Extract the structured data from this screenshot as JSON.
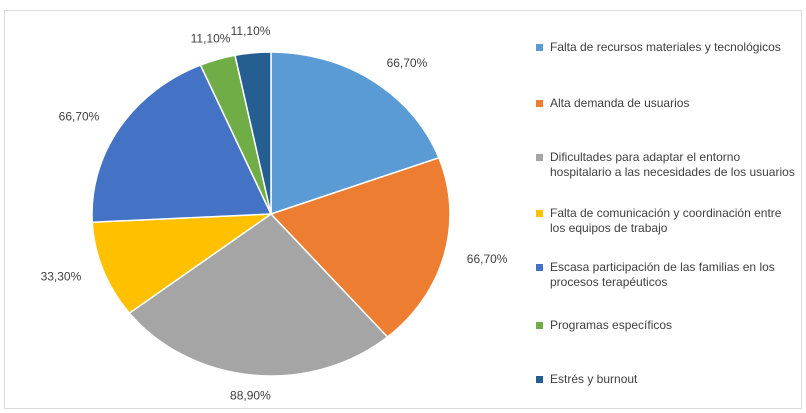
{
  "chart_data": {
    "type": "pie",
    "categories": [
      "Falta de recursos materiales y tecnológicos",
      "Alta demanda de usuarios",
      "Dificultades para adaptar el entorno hospitalario a las necesidades de los usuarios",
      "Falta de comunicación y coordinación entre los equipos de trabajo",
      "Escasa participación de las familias en los procesos terapéuticos",
      "Programas específicos",
      "Estrés y burnout"
    ],
    "values": [
      66.7,
      66.7,
      88.9,
      33.3,
      66.7,
      11.1,
      11.1
    ],
    "value_labels": [
      "66,70%",
      "66,70%",
      "88,90%",
      "33,30%",
      "66,70%",
      "11,10%",
      "11,10%"
    ],
    "colors": [
      "#5b9bd5",
      "#ed7d31",
      "#a5a5a5",
      "#ffc000",
      "#4472c4",
      "#70ad47",
      "#255e91"
    ],
    "legend": "right"
  }
}
